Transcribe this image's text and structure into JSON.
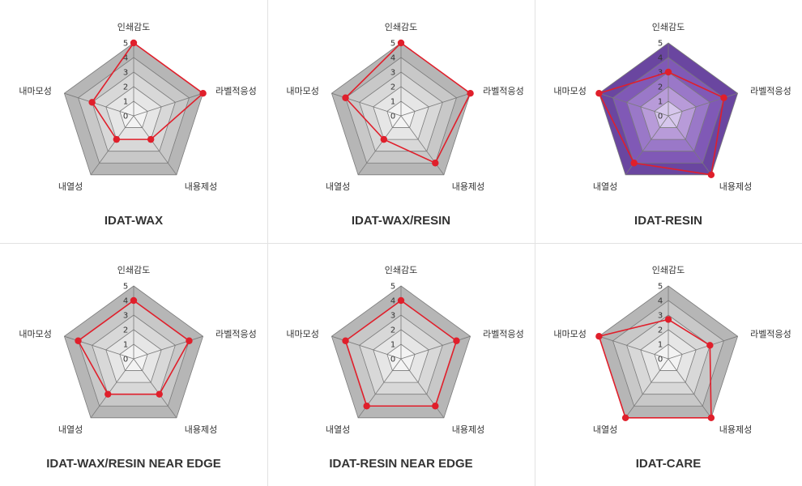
{
  "colors": {
    "grid_gray": [
      "#b6b6b6",
      "#c8c8c8",
      "#d8d8d8",
      "#e6e6e6",
      "#f3f3f3"
    ],
    "grid_purple": [
      "#6a46a0",
      "#8059b6",
      "#9a78c8",
      "#b89bd9",
      "#d6c6ec"
    ],
    "grid_stroke": "#7a7a7a",
    "series": "#e01f2b"
  },
  "chart_data": [
    {
      "type": "radar",
      "title": "IDAT-WAX",
      "axes": [
        "인쇄감도",
        "라벨적응성",
        "내용제성",
        "내열성",
        "내마모성"
      ],
      "ticks": [
        "0",
        "1",
        "2",
        "3",
        "4",
        "5"
      ],
      "rmax": 5,
      "theme": "gray",
      "values": [
        5,
        5,
        2,
        2,
        3
      ]
    },
    {
      "type": "radar",
      "title": "IDAT-WAX/RESIN",
      "axes": [
        "인쇄감도",
        "라벨적응성",
        "내용제성",
        "내열성",
        "내마모성"
      ],
      "ticks": [
        "0",
        "1",
        "2",
        "3",
        "4",
        "5"
      ],
      "rmax": 5,
      "theme": "gray",
      "values": [
        5,
        5,
        4,
        2,
        4
      ]
    },
    {
      "type": "radar",
      "title": "IDAT-RESIN",
      "axes": [
        "인쇄감도",
        "라벨적응성",
        "내용제성",
        "내열성",
        "내마모성"
      ],
      "ticks": [
        "0",
        "1",
        "2",
        "3",
        "4",
        "5"
      ],
      "rmax": 5,
      "theme": "purple",
      "values": [
        3,
        4,
        5,
        4,
        5
      ]
    },
    {
      "type": "radar",
      "title": "IDAT-WAX/RESIN NEAR EDGE",
      "axes": [
        "인쇄감도",
        "라벨적응성",
        "내용제성",
        "내열성",
        "내마모성"
      ],
      "ticks": [
        "0",
        "1",
        "2",
        "3",
        "4",
        "5"
      ],
      "rmax": 5,
      "theme": "gray",
      "values": [
        4,
        4,
        3,
        3,
        4
      ]
    },
    {
      "type": "radar",
      "title": "IDAT-RESIN NEAR EDGE",
      "axes": [
        "인쇄감도",
        "라벨적응성",
        "내용제성",
        "내열성",
        "내마모성"
      ],
      "ticks": [
        "0",
        "1",
        "2",
        "3",
        "4",
        "5"
      ],
      "rmax": 5,
      "theme": "gray",
      "values": [
        4,
        4,
        4,
        4,
        4
      ]
    },
    {
      "type": "radar",
      "title": "IDAT-CARE",
      "axes": [
        "인쇄감도",
        "라벨적응성",
        "내용제성",
        "내열성",
        "내마모성"
      ],
      "ticks": [
        "0",
        "1",
        "2",
        "3",
        "4",
        "5"
      ],
      "rmax": 5,
      "theme": "gray",
      "values": [
        2.7,
        3,
        5,
        5,
        5
      ]
    }
  ]
}
